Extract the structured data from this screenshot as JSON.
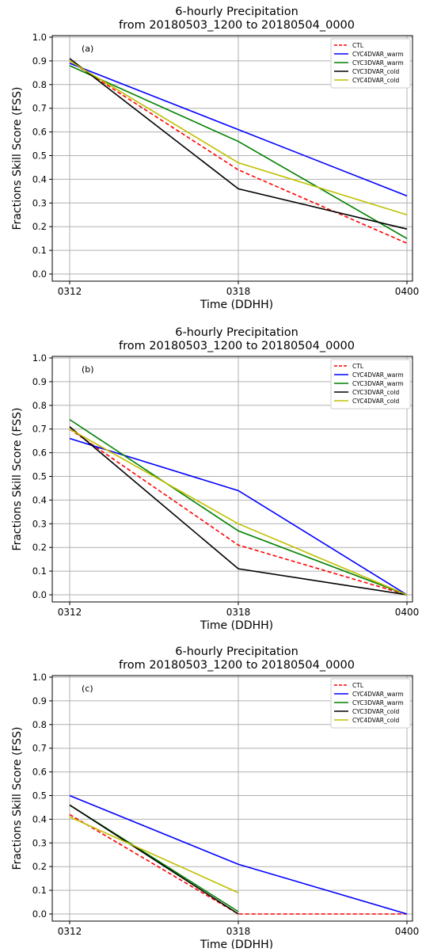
{
  "chart_data": [
    {
      "type": "line",
      "title": "6-hourly Precipitation",
      "subtitle": "from 20180503_1200 to 20180504_0000",
      "panel_label": "(a)",
      "xlabel": "Time (DDHH)",
      "ylabel": "Fractions Skill Score (FSS)",
      "categories": [
        "0312",
        "0318",
        "0400"
      ],
      "ylim": [
        0,
        1.0
      ],
      "yticks": [
        "0.0",
        "0.1",
        "0.2",
        "0.3",
        "0.4",
        "0.5",
        "0.6",
        "0.7",
        "0.8",
        "0.9",
        "1.0"
      ],
      "grid": true,
      "legend_position": "top-right",
      "series": [
        {
          "name": "CTL",
          "color": "#ff0000",
          "dash": true,
          "values": [
            0.9,
            0.44,
            0.13
          ]
        },
        {
          "name": "CYC4DVAR_warm",
          "color": "#0000ff",
          "dash": false,
          "values": [
            0.89,
            0.61,
            0.33
          ]
        },
        {
          "name": "CYC3DVAR_warm",
          "color": "#008000",
          "dash": false,
          "values": [
            0.88,
            0.56,
            0.15
          ]
        },
        {
          "name": "CYC3DVAR_cold",
          "color": "#000000",
          "dash": false,
          "values": [
            0.91,
            0.36,
            0.19
          ]
        },
        {
          "name": "CYC4DVAR_cold",
          "color": "#bfbf00",
          "dash": false,
          "values": [
            0.9,
            0.47,
            0.25
          ]
        }
      ]
    },
    {
      "type": "line",
      "title": "6-hourly Precipitation",
      "subtitle": "from 20180503_1200 to 20180504_0000",
      "panel_label": "(b)",
      "xlabel": "Time (DDHH)",
      "ylabel": "Fractions Skill Score (FSS)",
      "categories": [
        "0312",
        "0318",
        "0400"
      ],
      "ylim": [
        0,
        1.0
      ],
      "yticks": [
        "0.0",
        "0.1",
        "0.2",
        "0.3",
        "0.4",
        "0.5",
        "0.6",
        "0.7",
        "0.8",
        "0.9",
        "1.0"
      ],
      "grid": true,
      "legend_position": "top-right",
      "series": [
        {
          "name": "CTL",
          "color": "#ff0000",
          "dash": true,
          "values": [
            0.7,
            0.21,
            0.0
          ]
        },
        {
          "name": "CYC4DVAR_warm",
          "color": "#0000ff",
          "dash": false,
          "values": [
            0.66,
            0.44,
            0.0
          ]
        },
        {
          "name": "CYC3DVAR_warm",
          "color": "#008000",
          "dash": false,
          "values": [
            0.74,
            0.27,
            0.0
          ]
        },
        {
          "name": "CYC3DVAR_cold",
          "color": "#000000",
          "dash": false,
          "values": [
            0.71,
            0.11,
            0.0
          ]
        },
        {
          "name": "CYC4DVAR_cold",
          "color": "#bfbf00",
          "dash": false,
          "values": [
            0.7,
            0.3,
            0.0
          ]
        }
      ]
    },
    {
      "type": "line",
      "title": "6-hourly Precipitation",
      "subtitle": "from 20180503_1200 to 20180504_0000",
      "panel_label": "(c)",
      "xlabel": "Time (DDHH)",
      "ylabel": "Fractions Skill Score (FSS)",
      "categories": [
        "0312",
        "0318",
        "0400"
      ],
      "ylim": [
        0,
        1.0
      ],
      "yticks": [
        "0.0",
        "0.1",
        "0.2",
        "0.3",
        "0.4",
        "0.5",
        "0.6",
        "0.7",
        "0.8",
        "0.9",
        "1.0"
      ],
      "grid": true,
      "legend_position": "top-right",
      "series": [
        {
          "name": "CTL",
          "color": "#ff0000",
          "dash": true,
          "values": [
            0.42,
            0.0,
            0.0
          ]
        },
        {
          "name": "CYC4DVAR_warm",
          "color": "#0000ff",
          "dash": false,
          "values": [
            0.5,
            0.21,
            0.0
          ]
        },
        {
          "name": "CYC3DVAR_warm",
          "color": "#008000",
          "dash": false,
          "values": [
            0.46,
            0.01,
            null
          ]
        },
        {
          "name": "CYC3DVAR_cold",
          "color": "#000000",
          "dash": false,
          "values": [
            0.46,
            0.0,
            null
          ]
        },
        {
          "name": "CYC4DVAR_cold",
          "color": "#bfbf00",
          "dash": false,
          "values": [
            0.41,
            0.09,
            null
          ]
        }
      ]
    }
  ]
}
